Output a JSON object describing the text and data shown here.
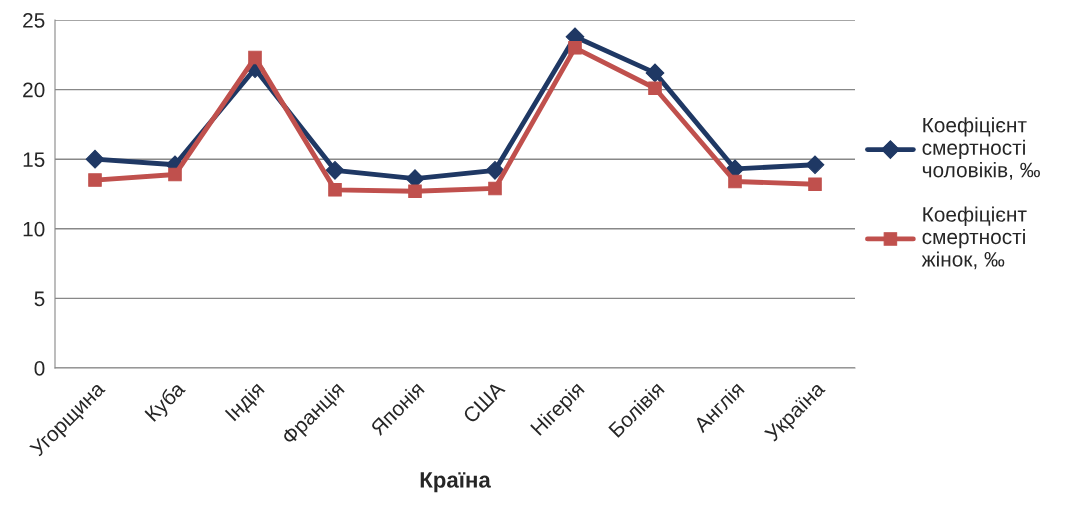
{
  "chart_data": {
    "type": "line",
    "xlabel": "Країна",
    "categories": [
      "Угорщина",
      "Куба",
      "Індія",
      "Франція",
      "Японія",
      "США",
      "Нігерія",
      "Болівія",
      "Англія",
      "Україна"
    ],
    "series": [
      {
        "name": "Коефіцієнт\nсмертності\nчоловіків, ‰",
        "color": "#1f3864",
        "marker": "diamond",
        "values": [
          15.0,
          14.6,
          21.5,
          14.2,
          13.6,
          14.2,
          23.8,
          21.2,
          14.3,
          14.6
        ]
      },
      {
        "name": "Коефіцієнт\nсмертності\nжінок, ‰",
        "color": "#c0504d",
        "marker": "square",
        "values": [
          13.5,
          13.9,
          22.3,
          12.8,
          12.7,
          12.9,
          23.0,
          20.1,
          13.4,
          13.2
        ]
      }
    ],
    "ylim": [
      0,
      25
    ],
    "yticks": [
      0,
      5,
      10,
      15,
      20,
      25
    ],
    "grid": "y",
    "legend": "right",
    "line_style": "solid"
  }
}
